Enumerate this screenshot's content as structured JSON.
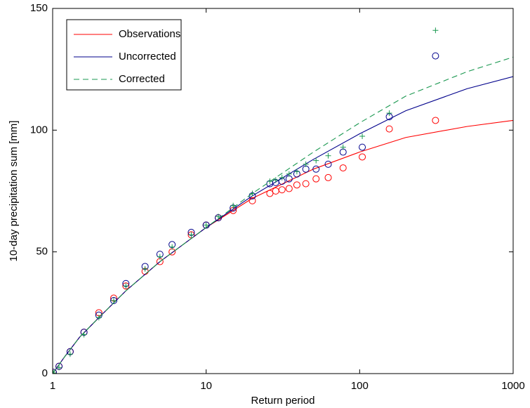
{
  "chart_data": {
    "type": "line",
    "xlabel": "Return period",
    "ylabel": "10-day precipitation sum [mm]",
    "xscale": "log",
    "xlim": [
      1,
      1000
    ],
    "xticks": [
      1,
      10,
      100,
      1000
    ],
    "ylim": [
      0,
      150
    ],
    "yticks": [
      0,
      50,
      100,
      150
    ],
    "grid": false,
    "legend": "upper-left",
    "series": [
      {
        "name": "Observations",
        "color": "#ff0000",
        "linestyle": "-",
        "marker": "o",
        "x": [
          1,
          1.2,
          1.5,
          2,
          3,
          5,
          10,
          20,
          50,
          100,
          200,
          500,
          1000
        ],
        "values": [
          0,
          7,
          15,
          23,
          34,
          46,
          60,
          72,
          84,
          91,
          97,
          101.5,
          104
        ],
        "marker_x": [
          312,
          156,
          104,
          78,
          62.4,
          52,
          44.6,
          39,
          34.7,
          31.2,
          28.4,
          26,
          20,
          15,
          12,
          10,
          8,
          6,
          5,
          4,
          3,
          2.5,
          2,
          1.6,
          1.3,
          1.1,
          1.01
        ],
        "marker_values": [
          104,
          100.5,
          89,
          84.5,
          80.5,
          80,
          78,
          77.5,
          76,
          75.5,
          75,
          74,
          71,
          67,
          64,
          61,
          57,
          50,
          46,
          42,
          36,
          31,
          25,
          17,
          9,
          3,
          0.5
        ]
      },
      {
        "name": "Uncorrected",
        "color": "#00008b",
        "linestyle": "-",
        "marker": "o",
        "x": [
          1,
          1.2,
          1.5,
          2,
          3,
          5,
          10,
          20,
          50,
          100,
          200,
          500,
          1000
        ],
        "values": [
          0,
          7,
          15,
          23,
          34,
          46,
          60,
          73,
          88,
          98.5,
          108,
          117,
          122
        ],
        "marker_x": [
          312,
          156,
          104,
          78,
          62.4,
          52,
          44.6,
          39,
          34.7,
          31.2,
          28.4,
          26,
          20,
          15,
          12,
          10,
          8,
          6,
          5,
          4,
          3,
          2.5,
          2,
          1.6,
          1.3,
          1.1,
          1.01
        ],
        "marker_values": [
          130.5,
          105.5,
          93,
          91,
          86,
          84,
          84,
          82,
          80,
          79,
          78.5,
          78,
          73,
          68,
          64,
          61,
          58,
          53,
          49,
          44,
          37,
          30,
          24,
          17,
          9,
          3,
          0.5
        ]
      },
      {
        "name": "Corrected",
        "color": "#1a9850",
        "linestyle": "--",
        "marker": "+",
        "x": [
          1,
          1.2,
          1.5,
          2,
          3,
          5,
          10,
          20,
          50,
          100,
          200,
          500,
          1000
        ],
        "values": [
          0,
          7,
          15,
          23,
          34,
          46,
          60,
          74,
          91,
          103,
          114,
          124,
          130
        ],
        "marker_x": [
          312,
          156,
          104,
          78,
          62.4,
          52,
          44.6,
          39,
          34.7,
          31.2,
          28.4,
          26,
          20,
          15,
          12,
          10,
          8,
          6,
          5,
          4,
          3,
          2.5,
          2,
          1.6,
          1.3,
          1.1,
          1.01
        ],
        "marker_values": [
          141,
          107,
          97.5,
          93,
          89.5,
          87.5,
          86,
          83,
          82,
          80.5,
          79.5,
          79,
          74,
          69,
          64.5,
          61,
          57,
          52,
          48,
          43,
          36,
          30,
          23,
          16,
          8,
          2.5,
          0.3
        ]
      }
    ]
  }
}
